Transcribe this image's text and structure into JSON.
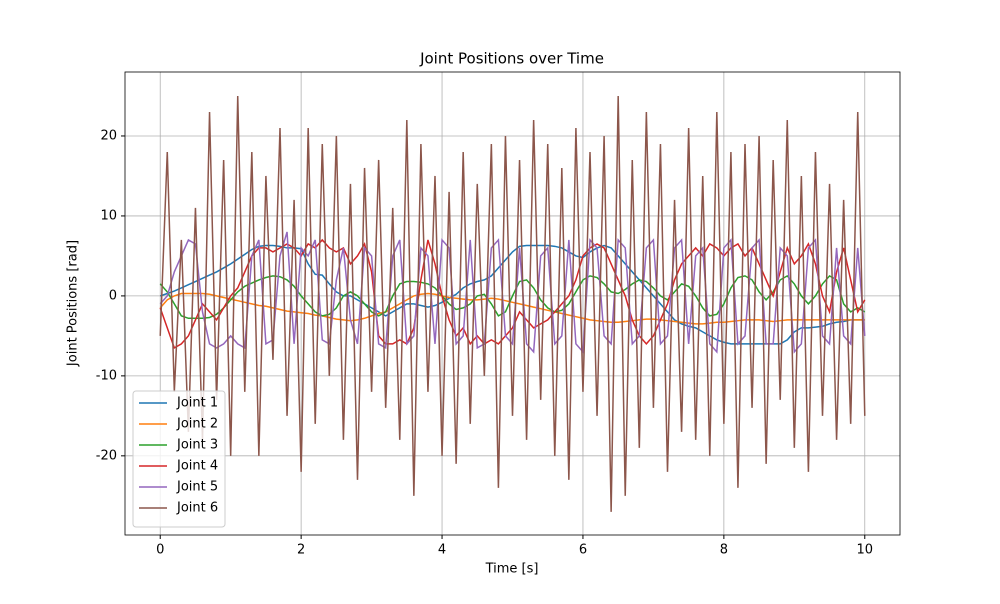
{
  "chart_data": {
    "type": "line",
    "title": "Joint Positions over Time",
    "xlabel": "Time [s]",
    "ylabel": "Joint Positions [rad]",
    "x": [
      0,
      0.1,
      0.2,
      0.3,
      0.4,
      0.5,
      0.6,
      0.7,
      0.8,
      0.9,
      1,
      1.1,
      1.2,
      1.3,
      1.4,
      1.5,
      1.6,
      1.7,
      1.8,
      1.9,
      2,
      2.1,
      2.2,
      2.3,
      2.4,
      2.5,
      2.6,
      2.7,
      2.8,
      2.9,
      3,
      3.1,
      3.2,
      3.3,
      3.4,
      3.5,
      3.6,
      3.7,
      3.8,
      3.9,
      4,
      4.1,
      4.2,
      4.3,
      4.4,
      4.5,
      4.6,
      4.7,
      4.8,
      4.9,
      5,
      5.1,
      5.2,
      5.3,
      5.4,
      5.5,
      5.6,
      5.7,
      5.8,
      5.9,
      6,
      6.1,
      6.2,
      6.3,
      6.4,
      6.5,
      6.6,
      6.7,
      6.8,
      6.9,
      7,
      7.1,
      7.2,
      7.3,
      7.4,
      7.5,
      7.6,
      7.7,
      7.8,
      7.9,
      8,
      8.1,
      8.2,
      8.3,
      8.4,
      8.5,
      8.6,
      8.7,
      8.8,
      8.9,
      9,
      9.1,
      9.2,
      9.3,
      9.4,
      9.5,
      9.6,
      9.7,
      9.8,
      9.9,
      10
    ],
    "series": [
      {
        "name": "Joint 1",
        "color": "#1f77b4",
        "values": [
          0,
          0.3,
          0.6,
          1,
          1.4,
          1.8,
          2.2,
          2.6,
          3,
          3.5,
          4,
          4.6,
          5.2,
          5.8,
          6.2,
          6.3,
          6.3,
          6.2,
          6,
          6,
          5.9,
          4,
          2.7,
          2.6,
          1.5,
          0.5,
          0,
          0,
          -0.5,
          -1,
          -1.5,
          -2,
          -2.5,
          -2,
          -1.5,
          -1,
          -1,
          -1.2,
          -1.4,
          -1.2,
          -0.8,
          -0.3,
          0.2,
          1,
          1.5,
          1.8,
          2,
          2.5,
          3.5,
          4.5,
          5.5,
          6.2,
          6.3,
          6.3,
          6.3,
          6.3,
          6.2,
          6,
          5.5,
          5,
          4.8,
          5.5,
          6,
          6.3,
          6,
          5,
          4,
          3,
          2,
          1,
          0,
          -1,
          -2,
          -3,
          -3.5,
          -3.8,
          -4,
          -4.5,
          -5,
          -5.5,
          -5.8,
          -6,
          -6,
          -6,
          -6,
          -6,
          -6,
          -6,
          -6,
          -5.5,
          -4.5,
          -4,
          -4,
          -3.9,
          -3.8,
          -3.5,
          -3.3,
          -3.2,
          -3,
          -3,
          -3
        ]
      },
      {
        "name": "Joint 2",
        "color": "#ff7f0e",
        "values": [
          -1.5,
          -0.5,
          0,
          0.3,
          0.3,
          0.3,
          0.3,
          0.2,
          0,
          -0.2,
          -0.4,
          -0.6,
          -0.8,
          -1,
          -1.2,
          -1.3,
          -1.5,
          -1.7,
          -1.9,
          -2,
          -2.1,
          -2.2,
          -2.4,
          -2.5,
          -2.7,
          -2.9,
          -3,
          -3.1,
          -3,
          -2.8,
          -2.5,
          -2.2,
          -2,
          -1.5,
          -1,
          -0.5,
          0,
          0.2,
          0.3,
          0.2,
          0,
          -0.2,
          -0.3,
          -0.4,
          -0.5,
          -0.5,
          -0.4,
          -0.3,
          -0.4,
          -0.6,
          -0.8,
          -1,
          -1.2,
          -1.4,
          -1.6,
          -1.8,
          -2,
          -2.2,
          -2.4,
          -2.6,
          -2.8,
          -3,
          -3.1,
          -3.2,
          -3.3,
          -3.3,
          -3.2,
          -3.1,
          -3,
          -2.9,
          -2.9,
          -3,
          -3.1,
          -3.2,
          -3.3,
          -3.4,
          -3.5,
          -3.5,
          -3.4,
          -3.3,
          -3.3,
          -3.2,
          -3.1,
          -3,
          -3,
          -3,
          -3.1,
          -3.2,
          -3.1,
          -3,
          -3,
          -3,
          -3,
          -3,
          -3,
          -3,
          -3,
          -3,
          -3,
          -3,
          -3
        ]
      },
      {
        "name": "Joint 3",
        "color": "#2ca02c",
        "values": [
          1.5,
          0.5,
          -1,
          -2.5,
          -2.8,
          -2.8,
          -2.8,
          -2.7,
          -2.3,
          -1.5,
          -0.5,
          0.5,
          1.2,
          1.6,
          2,
          2.3,
          2.5,
          2.4,
          2,
          1.2,
          0,
          -1,
          -2,
          -2.5,
          -2.3,
          -1.5,
          0,
          0.5,
          0,
          -1,
          -2,
          -2.5,
          -2,
          0,
          1.5,
          1.8,
          1.8,
          1.7,
          1.5,
          1,
          0,
          -1,
          -1.7,
          -1.5,
          -1,
          0,
          0.2,
          -1,
          -2.5,
          -2,
          0,
          1.8,
          2,
          1,
          -0.5,
          -1.5,
          -2,
          -1.8,
          -1,
          0.5,
          2,
          2.5,
          2.3,
          1.5,
          0.5,
          0.3,
          0.8,
          1.5,
          2,
          1.8,
          1,
          0,
          -0.5,
          0.5,
          1.5,
          1.2,
          0,
          -1.5,
          -2.5,
          -2.3,
          -1,
          1,
          2.3,
          2.5,
          2,
          0.5,
          -0.5,
          0.5,
          2,
          2.5,
          1.5,
          0,
          -1,
          0,
          1.5,
          2.5,
          2,
          -1,
          -2,
          -1.5,
          -2
        ]
      },
      {
        "name": "Joint 4",
        "color": "#d62728",
        "values": [
          -1.5,
          -4,
          -6.5,
          -6,
          -5,
          -3,
          -1,
          -2,
          -3,
          -1.5,
          0,
          1,
          3,
          5,
          6,
          6,
          5.5,
          6,
          6.5,
          6,
          5,
          6.5,
          6,
          7,
          6,
          5.5,
          6,
          4,
          5,
          6.5,
          3,
          -5,
          -6,
          -6,
          -5.5,
          -6,
          -4,
          2,
          7,
          4,
          0,
          -3,
          -5,
          -4,
          -6,
          -5,
          -6,
          -5.5,
          -6,
          -5,
          -4,
          -2,
          -3,
          -4,
          -3.5,
          -3,
          -2,
          -1,
          0,
          2,
          5,
          6,
          6.5,
          6,
          4,
          2,
          0,
          -3,
          -5,
          -6,
          -5,
          -3,
          -1,
          2,
          4,
          5,
          6,
          5,
          6.5,
          6,
          5,
          6,
          6.5,
          5,
          6,
          4,
          2,
          0,
          3,
          6,
          4,
          5,
          6.5,
          4,
          0,
          -2,
          3,
          6,
          2,
          -2,
          -0.5
        ]
      },
      {
        "name": "Joint 5",
        "color": "#9467bd",
        "values": [
          -1,
          0,
          3,
          5,
          7,
          6.5,
          -2,
          -6,
          -6.5,
          -6,
          -5,
          -6,
          -6.5,
          5,
          7,
          -6,
          -5.5,
          5,
          8,
          -6,
          6,
          5,
          7,
          -5.5,
          -6,
          2,
          6,
          -3,
          -6,
          6,
          5,
          -6,
          -6.5,
          5,
          7,
          -6,
          -5,
          6,
          5,
          -6,
          7,
          6,
          -6,
          -5,
          7,
          -6.5,
          -6,
          6,
          7,
          -5,
          -6,
          6,
          -6,
          -7,
          5,
          6,
          -6,
          -5,
          7,
          -6,
          -7,
          7,
          6,
          -5,
          -6,
          7,
          6,
          -6,
          -5,
          6,
          7,
          -6,
          -5,
          6,
          7,
          -6,
          5,
          6,
          -6,
          -7,
          6,
          7,
          -6,
          -5,
          6,
          7,
          -6,
          -6,
          6,
          5,
          -7,
          -6,
          6,
          7,
          -5,
          -6,
          6,
          -5,
          -6,
          6,
          -5
        ]
      },
      {
        "name": "Joint 6",
        "color": "#8c564b",
        "values": [
          -5,
          18,
          -12,
          7,
          -17,
          11,
          -18,
          23,
          -13,
          17,
          -20,
          25,
          -12,
          18,
          -20,
          15,
          -8,
          21,
          -15,
          12,
          -22,
          21,
          -16,
          19,
          -10,
          20,
          -18,
          14,
          -23,
          16,
          -12,
          17,
          -14,
          11,
          -18,
          22,
          -25,
          19,
          -12,
          15,
          -20,
          13,
          -21,
          18,
          -16,
          14,
          -10,
          19,
          -24,
          20,
          -15,
          17,
          -18,
          22,
          -13,
          19,
          -20,
          16,
          -23,
          21,
          -12,
          18,
          -15,
          20,
          -27,
          25,
          -25,
          17,
          -19,
          23,
          -14,
          19,
          -22,
          12,
          -17,
          21,
          -18,
          15,
          -20,
          23,
          -16,
          18,
          -24,
          19,
          -14,
          20,
          -21,
          17,
          -13,
          22,
          -19,
          15,
          -22,
          18,
          -15,
          14,
          -18,
          12,
          -16,
          23,
          -15
        ]
      }
    ],
    "xlim": [
      -0.5,
      10.5
    ],
    "ylim": [
      -29.9,
      28
    ],
    "xticks": [
      0,
      2,
      4,
      6,
      8,
      10
    ],
    "yticks": [
      -20,
      -10,
      0,
      10,
      20
    ],
    "grid": true,
    "legend": "lower left"
  }
}
